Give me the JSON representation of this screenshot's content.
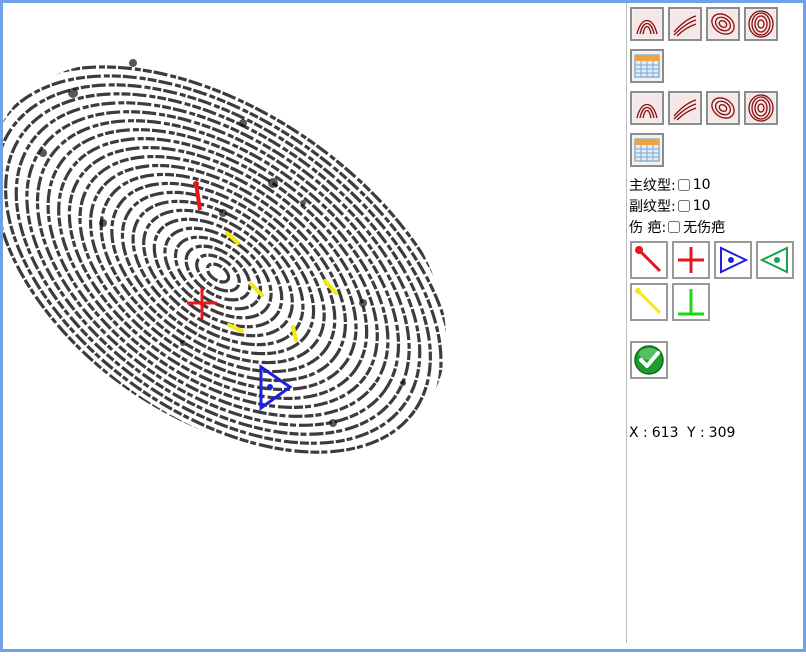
{
  "panel": {
    "primary_label": "主纹型:",
    "primary_value": "10",
    "secondary_label": "副纹型:",
    "secondary_value": "10",
    "scar_label": "伤 疤:",
    "scar_value": "无伤疤"
  },
  "coords": {
    "x_label": "X :",
    "x_value": "613",
    "y_label": "Y :",
    "y_value": "309"
  },
  "icons": {
    "pattern_types": [
      "arch-pattern-icon",
      "tented-arch-pattern-icon",
      "loop-pattern-icon",
      "whorl-pattern-icon"
    ],
    "calendar": "calendar-icon",
    "markers": [
      "minutia-ending-icon",
      "core-cross-icon",
      "delta-right-icon",
      "delta-left-icon",
      "yellow-line-icon",
      "bifurcation-icon"
    ],
    "confirm": "confirm-check-icon"
  },
  "colors": {
    "frame_border": "#6fa1e6",
    "marker_red": "#e8161b",
    "marker_blue": "#1f1fe0",
    "marker_green": "#1aa14c",
    "marker_yellow": "#f2ea12",
    "marker_lime": "#18d818",
    "ridge": "#1a1a1a"
  }
}
